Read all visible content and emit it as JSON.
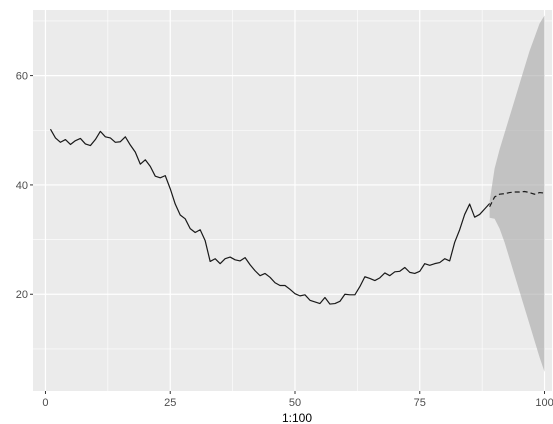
{
  "chart_data": {
    "type": "line",
    "title": "",
    "xlabel": "1:100",
    "ylabel": "",
    "xlim": [
      -2.5,
      101.5
    ],
    "ylim": [
      2.3,
      72.0
    ],
    "x_ticks": [
      0,
      25,
      50,
      75,
      100
    ],
    "x_tick_labels": [
      "0",
      "25",
      "50",
      "75",
      "100"
    ],
    "y_ticks": [
      20,
      40,
      60
    ],
    "y_tick_labels": [
      "20",
      "40",
      "60"
    ],
    "grid": true,
    "legend": "none",
    "colors": {
      "panel": "#ebebeb",
      "grid": "#ffffff",
      "line": "#1a1a1a",
      "band": "#a6a6a6"
    },
    "series": [
      {
        "role": "observed",
        "x": [
          1,
          2,
          3,
          4,
          5,
          6,
          7,
          8,
          9,
          10,
          11,
          12,
          13,
          14,
          15,
          16,
          17,
          18,
          19,
          20,
          21,
          22,
          23,
          24,
          25,
          26,
          27,
          28,
          29,
          30,
          31,
          32,
          33,
          34,
          35,
          36,
          37,
          38,
          39,
          40,
          41,
          42,
          43,
          44,
          45,
          46,
          47,
          48,
          49,
          50,
          51,
          52,
          53,
          54,
          55,
          56,
          57,
          58,
          59,
          60,
          61,
          62,
          63,
          64,
          65,
          66,
          67,
          68,
          69,
          70,
          71,
          72,
          73,
          74,
          75,
          76,
          77,
          78,
          79,
          80,
          81,
          82,
          83,
          84,
          85,
          86,
          87,
          88,
          89
        ],
        "y": [
          50.2,
          48.6,
          47.8,
          48.3,
          47.4,
          48.1,
          48.5,
          47.5,
          47.2,
          48.3,
          49.8,
          48.8,
          48.6,
          47.8,
          47.9,
          48.8,
          47.3,
          46.0,
          43.8,
          44.6,
          43.4,
          41.6,
          41.3,
          41.7,
          39.3,
          36.5,
          34.5,
          33.8,
          32.0,
          31.3,
          31.8,
          29.8,
          26.0,
          26.5,
          25.6,
          26.5,
          26.8,
          26.3,
          26.1,
          26.7,
          25.4,
          24.3,
          23.4,
          23.8,
          23.1,
          22.1,
          21.6,
          21.6,
          20.9,
          20.1,
          19.7,
          19.9,
          18.9,
          18.6,
          18.3,
          19.4,
          18.2,
          18.3,
          18.7,
          20.0,
          19.9,
          19.9,
          21.4,
          23.2,
          22.9,
          22.5,
          23.0,
          23.9,
          23.4,
          24.1,
          24.2,
          24.9,
          24.0,
          23.8,
          24.2,
          25.6,
          25.3,
          25.6,
          25.8,
          26.5,
          26.1,
          29.5,
          31.8,
          34.6,
          36.5,
          34.1,
          34.6,
          35.6,
          36.6
        ]
      },
      {
        "role": "forecast",
        "x": [
          89,
          90,
          91,
          92,
          93,
          94,
          95,
          96,
          97,
          98,
          99,
          100
        ],
        "y": [
          36.0,
          37.8,
          38.3,
          38.4,
          38.6,
          38.7,
          38.7,
          38.8,
          38.6,
          38.3,
          38.6,
          38.5
        ],
        "upper": [
          37.0,
          43.0,
          46.5,
          49.5,
          52.5,
          55.5,
          58.5,
          61.5,
          64.5,
          67.0,
          69.5,
          71.0
        ],
        "lower": [
          34.0,
          33.8,
          32.0,
          29.5,
          26.5,
          23.5,
          20.5,
          17.5,
          14.5,
          11.5,
          8.5,
          5.8
        ]
      }
    ]
  }
}
